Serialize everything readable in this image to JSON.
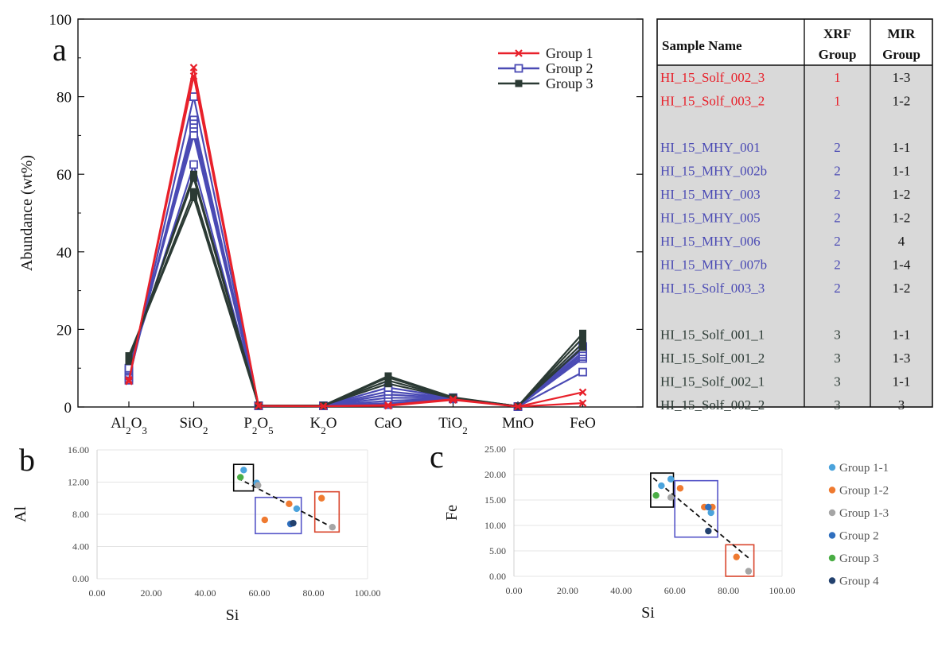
{
  "colors": {
    "group1": "#e8202a",
    "group2": "#4a4ab4",
    "group3": "#2b3a34",
    "table_fill": "#d9d9d9",
    "mir_1_1": "#4ba3dc",
    "mir_1_2": "#ef7a30",
    "mir_1_3": "#a5a5a5",
    "mir_2": "#2f6fbe",
    "mir_3": "#4aad45",
    "mir_4": "#22416e",
    "box_black": "#000000",
    "box_blue": "#5555c8",
    "box_red": "#d9452c"
  },
  "chart_data": [
    {
      "panel_label": "a",
      "type": "line",
      "ylabel": "Abundance (wt%)",
      "ylim": [
        0,
        100
      ],
      "yticks": [
        0,
        20,
        40,
        60,
        80,
        100
      ],
      "categories": [
        {
          "main": "Al",
          "sub": "2",
          "main2": "O",
          "sub2": "3"
        },
        {
          "main": "SiO",
          "sub": "2",
          "main2": "",
          "sub2": ""
        },
        {
          "main": "P",
          "sub": "2",
          "main2": "O",
          "sub2": "5"
        },
        {
          "main": "K",
          "sub": "2",
          "main2": "O",
          "sub2": ""
        },
        {
          "main": "CaO",
          "sub": "",
          "main2": "",
          "sub2": ""
        },
        {
          "main": "TiO",
          "sub": "2",
          "main2": "",
          "sub2": ""
        },
        {
          "main": "MnO",
          "sub": "",
          "main2": "",
          "sub2": ""
        },
        {
          "main": "FeO",
          "sub": "",
          "main2": "",
          "sub2": ""
        }
      ],
      "legend": [
        "Group 1",
        "Group 2",
        "Group 3"
      ],
      "legend_position": "top-right",
      "series": [
        {
          "group": 1,
          "values": [
            6.6,
            87.5,
            0.3,
            0.2,
            0.3,
            1.8,
            0.1,
            1.0
          ]
        },
        {
          "group": 1,
          "values": [
            7.0,
            85.3,
            0.3,
            0.2,
            0.5,
            2.0,
            0.1,
            3.8
          ]
        },
        {
          "group": 2,
          "values": [
            6.9,
            80.0,
            0.3,
            0.3,
            0.6,
            2.1,
            0.1,
            9.0
          ]
        },
        {
          "group": 2,
          "values": [
            7.4,
            74.0,
            0.3,
            0.3,
            1.0,
            2.1,
            0.1,
            12.5
          ]
        },
        {
          "group": 2,
          "values": [
            8.0,
            73.0,
            0.3,
            0.3,
            1.6,
            2.2,
            0.1,
            13.0
          ]
        },
        {
          "group": 2,
          "values": [
            8.6,
            72.0,
            0.3,
            0.3,
            2.4,
            2.2,
            0.1,
            13.6
          ]
        },
        {
          "group": 2,
          "values": [
            9.2,
            71.0,
            0.3,
            0.3,
            3.2,
            2.3,
            0.1,
            14.2
          ]
        },
        {
          "group": 2,
          "values": [
            9.6,
            70.0,
            0.3,
            0.3,
            4.0,
            2.3,
            0.1,
            15.0
          ]
        },
        {
          "group": 2,
          "values": [
            10.0,
            62.5,
            0.3,
            0.3,
            5.0,
            2.4,
            0.1,
            15.6
          ]
        },
        {
          "group": 3,
          "values": [
            11.8,
            60.0,
            0.4,
            0.4,
            6.0,
            2.3,
            0.2,
            15.4
          ]
        },
        {
          "group": 3,
          "values": [
            12.2,
            59.0,
            0.4,
            0.4,
            6.8,
            2.4,
            0.2,
            16.5
          ]
        },
        {
          "group": 3,
          "values": [
            12.8,
            55.5,
            0.4,
            0.4,
            7.6,
            2.4,
            0.2,
            17.8
          ]
        },
        {
          "group": 3,
          "values": [
            13.2,
            54.0,
            0.4,
            0.4,
            8.0,
            2.5,
            0.2,
            19.0
          ]
        }
      ]
    },
    {
      "panel_label": "b",
      "type": "scatter",
      "xlabel": "Si",
      "ylabel": "Al",
      "xlim": [
        0,
        100
      ],
      "ylim": [
        0,
        16
      ],
      "xticks": [
        "0.00",
        "20.00",
        "40.00",
        "60.00",
        "80.00",
        "100.00"
      ],
      "yticks": [
        "0.00",
        "4.00",
        "8.00",
        "12.00",
        "16.00"
      ],
      "points": [
        {
          "x": 54.2,
          "y": 13.5,
          "class": "Group 1-1"
        },
        {
          "x": 59.0,
          "y": 11.9,
          "class": "Group 1-1"
        },
        {
          "x": 73.8,
          "y": 8.7,
          "class": "Group 1-1"
        },
        {
          "x": 62.0,
          "y": 7.3,
          "class": "Group 1-2"
        },
        {
          "x": 71.0,
          "y": 9.3,
          "class": "Group 1-2"
        },
        {
          "x": 83.0,
          "y": 10.0,
          "class": "Group 1-2"
        },
        {
          "x": 59.5,
          "y": 11.6,
          "class": "Group 1-3"
        },
        {
          "x": 87.0,
          "y": 6.4,
          "class": "Group 1-3"
        },
        {
          "x": 71.5,
          "y": 6.8,
          "class": "Group 2"
        },
        {
          "x": 53.0,
          "y": 12.6,
          "class": "Group 3"
        },
        {
          "x": 72.5,
          "y": 6.9,
          "class": "Group 4"
        }
      ],
      "trendline": [
        [
          52,
          12.5
        ],
        [
          88,
          6.2
        ]
      ],
      "boxes": [
        {
          "color": "black",
          "x": [
            50.5,
            57.8
          ],
          "y": [
            10.9,
            14.2
          ]
        },
        {
          "color": "blue",
          "x": [
            58.5,
            75.5
          ],
          "y": [
            5.6,
            10.1
          ]
        },
        {
          "color": "red",
          "x": [
            80.5,
            89.5
          ],
          "y": [
            5.8,
            10.8
          ]
        }
      ]
    },
    {
      "panel_label": "c",
      "type": "scatter",
      "xlabel": "Si",
      "ylabel": "Fe",
      "xlim": [
        0,
        100
      ],
      "ylim": [
        0,
        25
      ],
      "xticks": [
        "0.00",
        "20.00",
        "40.00",
        "60.00",
        "80.00",
        "100.00"
      ],
      "yticks": [
        "0.00",
        "5.00",
        "10.00",
        "15.00",
        "20.00",
        "25.00"
      ],
      "legend": [
        "Group 1-1",
        "Group 1-2",
        "Group 1-3",
        "Group 2",
        "Group 3",
        "Group 4"
      ],
      "legend_position": "right",
      "points": [
        {
          "x": 58.5,
          "y": 19.1,
          "class": "Group 1-1"
        },
        {
          "x": 55.0,
          "y": 17.8,
          "class": "Group 1-1"
        },
        {
          "x": 73.5,
          "y": 12.5,
          "class": "Group 1-1"
        },
        {
          "x": 62.0,
          "y": 17.3,
          "class": "Group 1-2"
        },
        {
          "x": 71.0,
          "y": 13.6,
          "class": "Group 1-2"
        },
        {
          "x": 74.0,
          "y": 13.6,
          "class": "Group 1-2"
        },
        {
          "x": 83.0,
          "y": 3.8,
          "class": "Group 1-2"
        },
        {
          "x": 58.5,
          "y": 15.5,
          "class": "Group 1-3"
        },
        {
          "x": 87.5,
          "y": 1.0,
          "class": "Group 1-3"
        },
        {
          "x": 72.5,
          "y": 13.6,
          "class": "Group 2"
        },
        {
          "x": 53.0,
          "y": 15.9,
          "class": "Group 3"
        },
        {
          "x": 72.5,
          "y": 8.9,
          "class": "Group 4"
        }
      ],
      "trendline": [
        [
          52,
          19.3
        ],
        [
          88,
          3.4
        ]
      ],
      "boxes": [
        {
          "color": "black",
          "x": [
            51.0,
            59.5
          ],
          "y": [
            13.6,
            20.3
          ]
        },
        {
          "color": "blue",
          "x": [
            60.0,
            76.0
          ],
          "y": [
            7.7,
            18.8
          ]
        },
        {
          "color": "red",
          "x": [
            79.0,
            89.5
          ],
          "y": [
            0.0,
            6.2
          ]
        }
      ]
    }
  ],
  "table": {
    "headers": {
      "sample": "Sample Name",
      "xrf_1": "XRF",
      "xrf_2": "Group",
      "mir_1": "MIR",
      "mir_2": "Group"
    },
    "rows": [
      {
        "name": "HI_15_Solf_002_3",
        "xrf": "1",
        "mir": "1-3",
        "group": 1
      },
      {
        "name": "HI_15_Solf_003_2",
        "xrf": "1",
        "mir": "1-2",
        "group": 1
      },
      {
        "name": "HI_15_MHY_001",
        "xrf": "2",
        "mir": "1-1",
        "group": 2
      },
      {
        "name": "HI_15_MHY_002b",
        "xrf": "2",
        "mir": "1-1",
        "group": 2
      },
      {
        "name": "HI_15_MHY_003",
        "xrf": "2",
        "mir": "1-2",
        "group": 2
      },
      {
        "name": "HI_15_MHY_005",
        "xrf": "2",
        "mir": "1-2",
        "group": 2
      },
      {
        "name": "HI_15_MHY_006",
        "xrf": "2",
        "mir": "4",
        "group": 2
      },
      {
        "name": "HI_15_MHY_007b",
        "xrf": "2",
        "mir": "1-4",
        "group": 2
      },
      {
        "name": "HI_15_Solf_003_3",
        "xrf": "2",
        "mir": "1-2",
        "group": 2
      },
      {
        "name": "HI_15_Solf_001_1",
        "xrf": "3",
        "mir": "1-1",
        "group": 3
      },
      {
        "name": "HI_15_Solf_001_2",
        "xrf": "3",
        "mir": "1-3",
        "group": 3
      },
      {
        "name": "HI_15_Solf_002_1",
        "xrf": "3",
        "mir": "1-1",
        "group": 3
      },
      {
        "name": "HI_15_Solf_002_2",
        "xrf": "3",
        "mir": "3",
        "group": 3
      }
    ]
  }
}
